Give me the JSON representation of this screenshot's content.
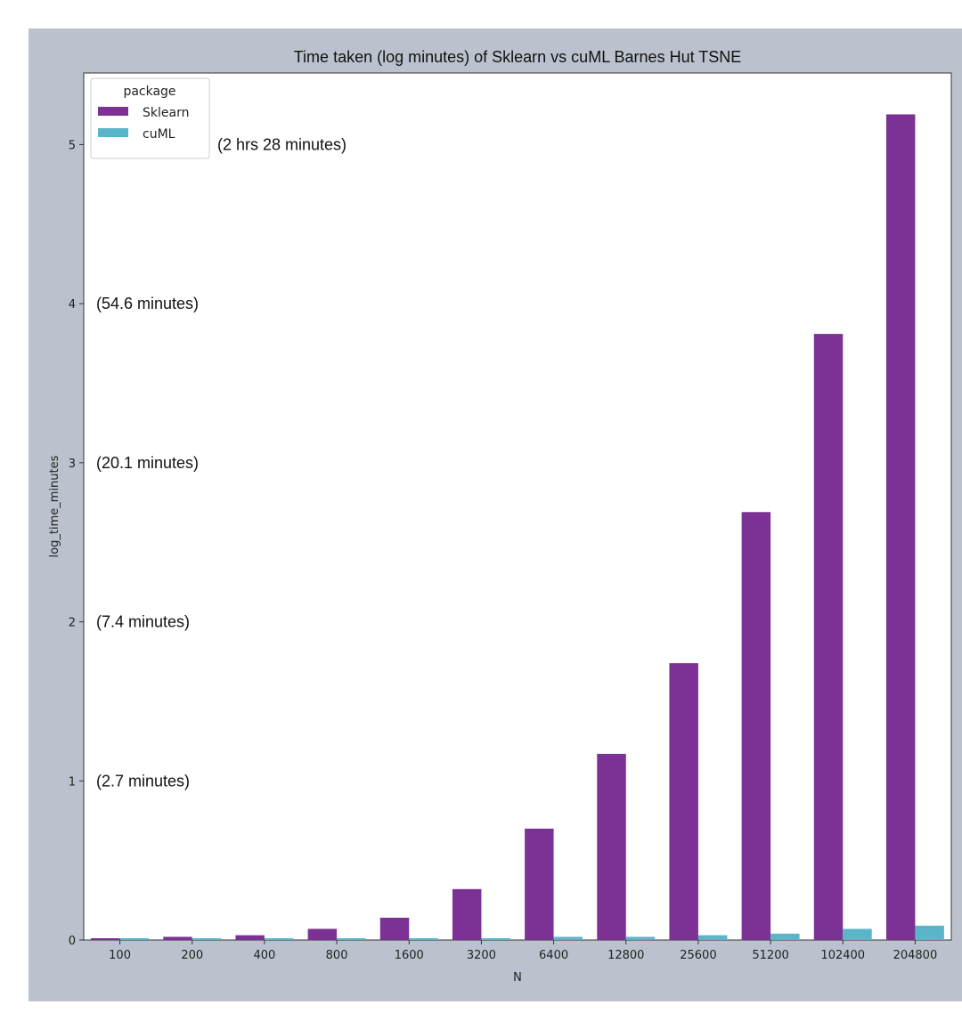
{
  "chart_data": {
    "type": "bar",
    "title": "Time taken (log minutes) of Sklearn vs cuML Barnes Hut TSNE",
    "xlabel": "N",
    "ylabel": "log_time_minutes",
    "categories": [
      "100",
      "200",
      "400",
      "800",
      "1600",
      "3200",
      "6400",
      "12800",
      "25600",
      "51200",
      "102400",
      "204800"
    ],
    "series": [
      {
        "name": "Sklearn",
        "color": "#7b3294",
        "values": [
          0.01,
          0.02,
          0.03,
          0.07,
          0.14,
          0.32,
          0.7,
          1.17,
          1.74,
          2.69,
          3.81,
          5.19
        ]
      },
      {
        "name": "cuML",
        "color": "#5bb5c8",
        "values": [
          0.01,
          0.01,
          0.01,
          0.01,
          0.01,
          0.01,
          0.02,
          0.02,
          0.03,
          0.04,
          0.07,
          0.09
        ]
      }
    ],
    "ylim": [
      0,
      5.45
    ],
    "yticks": [
      0,
      1,
      2,
      3,
      4,
      5
    ],
    "legend": {
      "title": "package",
      "position": "top-left"
    },
    "annotations": [
      {
        "text": "(2 hrs 28 minutes)",
        "y": 5.0
      },
      {
        "text": "(54.6 minutes)",
        "y": 4.0
      },
      {
        "text": "(20.1 minutes)",
        "y": 3.0
      },
      {
        "text": "(7.4 minutes)",
        "y": 2.0
      },
      {
        "text": "(2.7 minutes)",
        "y": 1.0
      }
    ],
    "grid": false
  }
}
